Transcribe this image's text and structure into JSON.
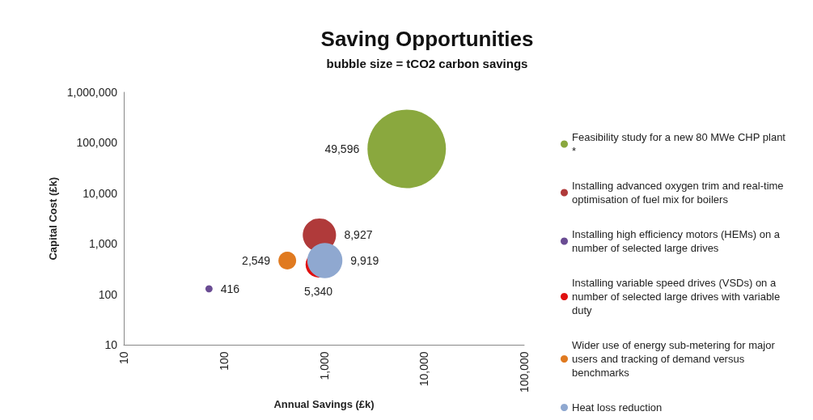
{
  "chart_data": {
    "type": "bubble",
    "title": "Saving Opportunities",
    "subtitle": "bubble size = tCO2 carbon savings",
    "xlabel": "Annual Savings (£k)",
    "ylabel": "Capital Cost (£k)",
    "log": "xy",
    "grid": false,
    "legend": "right",
    "xlim": [
      10,
      100000
    ],
    "xticks": [
      10,
      {
        "value": 100,
        "label": "100"
      },
      {
        "value": 1000,
        "label": "1,000"
      },
      {
        "value": 10000,
        "label": "10,000"
      },
      {
        "value": 100000,
        "label": "100,000"
      }
    ],
    "ylim": [
      10,
      1000000
    ],
    "yticks": [
      10,
      100,
      {
        "value": 1000,
        "label": "1,000"
      },
      {
        "value": 10000,
        "label": "10,000"
      },
      {
        "value": 100000,
        "label": "100,000"
      },
      {
        "value": 1000000,
        "label": "1,000,000"
      }
    ],
    "series": [
      {
        "name": "Feasibility study for a new 80 MWe CHP plant *",
        "color": "#8aa83e",
        "x": [
          6700
        ],
        "values": [
          76000
        ],
        "sizes": [
          49596
        ],
        "value_labels": [
          "49,596"
        ]
      },
      {
        "name": "Installing advanced oxygen trim and real-time optimisation of fuel mix for boilers",
        "color": "#b03a3a",
        "x": [
          900
        ],
        "values": [
          1500
        ],
        "sizes": [
          8927
        ],
        "value_labels": [
          "8,927"
        ]
      },
      {
        "name": "Installing high efficiency motors (HEMs) on a number of selected large drives",
        "color": "#6a4c93",
        "x": [
          71
        ],
        "values": [
          130
        ],
        "sizes": [
          416
        ],
        "value_labels": [
          "416"
        ]
      },
      {
        "name": "Installing variable speed drives (VSDs) on a number of selected large drives with variable duty",
        "color": "#e01010",
        "x": [
          880
        ],
        "values": [
          390
        ],
        "sizes": [
          5340
        ],
        "value_labels": [
          "5,340"
        ]
      },
      {
        "name": "Wider use of energy sub-metering for major users and tracking of demand versus benchmarks",
        "color": "#e07a20",
        "x": [
          430
        ],
        "values": [
          470
        ],
        "sizes": [
          2549
        ],
        "value_labels": [
          "2,549"
        ]
      },
      {
        "name": "Heat loss reduction",
        "color": "#8fa8d0",
        "x": [
          1020
        ],
        "values": [
          470
        ],
        "sizes": [
          9919
        ],
        "value_labels": [
          "9,919"
        ]
      }
    ]
  }
}
